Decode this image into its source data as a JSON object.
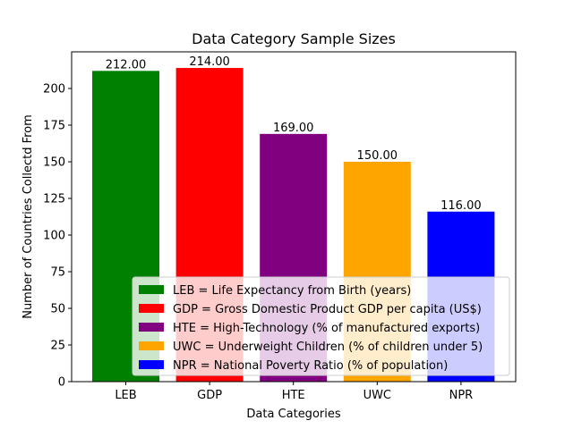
{
  "chart_data": {
    "type": "bar",
    "title": "Data Category Sample Sizes",
    "xlabel": "Data Categories",
    "ylabel": "Number of Countries Collectd From",
    "categories": [
      "LEB",
      "GDP",
      "HTE",
      "UWC",
      "NPR"
    ],
    "values": [
      212,
      214,
      169,
      150,
      116
    ],
    "data_labels": [
      "212.00",
      "214.00",
      "169.00",
      "150.00",
      "116.00"
    ],
    "colors": [
      "#008000",
      "#ff0000",
      "#800080",
      "#ffa500",
      "#0000ff"
    ],
    "ylim": [
      0,
      225
    ],
    "yticks": [
      0,
      25,
      50,
      75,
      100,
      125,
      150,
      175,
      200
    ],
    "grid": false,
    "legend_position": "bottom-right",
    "legend": [
      {
        "label": "LEB = Life Expectancy from Birth (years)",
        "color": "#008000"
      },
      {
        "label": "GDP = Gross Domestic Product GDP per capita (US$)",
        "color": "#ff0000"
      },
      {
        "label": "HTE = High-Technology (% of manufactured exports)",
        "color": "#800080"
      },
      {
        "label": "UWC = Underweight Children (% of children under 5)",
        "color": "#ffa500"
      },
      {
        "label": "NPR = National Poverty Ratio (% of population)",
        "color": "#0000ff"
      }
    ]
  }
}
